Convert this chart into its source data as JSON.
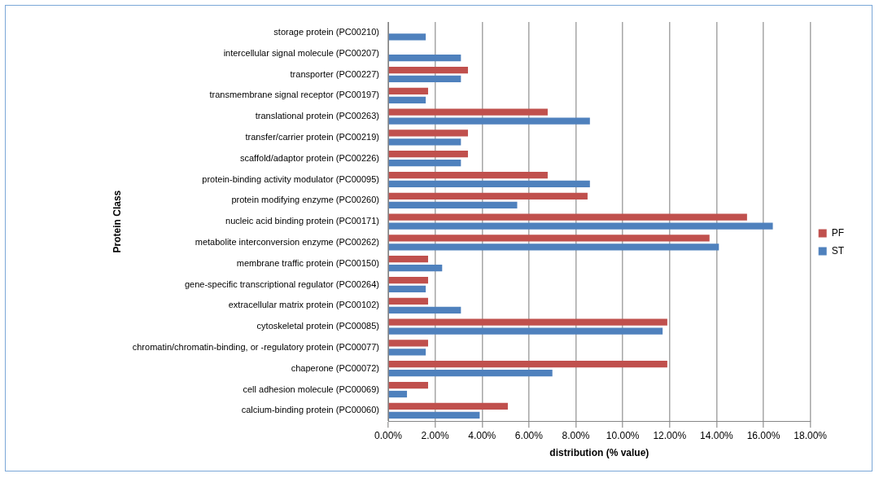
{
  "chart_data": {
    "type": "bar",
    "orientation": "horizontal",
    "xlabel": "distribution (% value)",
    "ylabel": "Protein Class",
    "categories": [
      "storage protein (PC00210)",
      "intercellular signal molecule (PC00207)",
      "transporter (PC00227)",
      "transmembrane signal receptor (PC00197)",
      "translational protein (PC00263)",
      "transfer/carrier protein (PC00219)",
      "scaffold/adaptor protein (PC00226)",
      "protein-binding activity modulator (PC00095)",
      "protein modifying enzyme (PC00260)",
      "nucleic acid binding protein (PC00171)",
      "metabolite interconversion enzyme (PC00262)",
      "membrane traffic protein (PC00150)",
      "gene-specific transcriptional regulator (PC00264)",
      "extracellular matrix protein (PC00102)",
      "cytoskeletal protein (PC00085)",
      "chromatin/chromatin-binding, or -regulatory protein (PC00077)",
      "chaperone (PC00072)",
      "cell adhesion molecule (PC00069)",
      "calcium-binding protein (PC00060)"
    ],
    "series": [
      {
        "name": "PF",
        "color": "#c0504d",
        "values": [
          null,
          null,
          3.4,
          1.7,
          6.8,
          3.4,
          3.4,
          6.8,
          8.5,
          15.3,
          13.7,
          1.7,
          1.7,
          1.7,
          11.9,
          1.7,
          11.9,
          1.7,
          5.1
        ]
      },
      {
        "name": "ST",
        "color": "#4f81bd",
        "values": [
          1.6,
          3.1,
          3.1,
          1.6,
          8.6,
          3.1,
          3.1,
          8.6,
          5.5,
          16.4,
          14.1,
          2.3,
          1.6,
          3.1,
          11.7,
          1.6,
          7.0,
          0.8,
          3.9
        ]
      }
    ],
    "xlim": [
      0,
      18
    ],
    "xticks": [
      {
        "value": 0,
        "label": "0.00%"
      },
      {
        "value": 2,
        "label": "2.00%"
      },
      {
        "value": 4,
        "label": "4.00%"
      },
      {
        "value": 6,
        "label": "6.00%"
      },
      {
        "value": 8,
        "label": "8.00%"
      },
      {
        "value": 10,
        "label": "10.00%"
      },
      {
        "value": 12,
        "label": "12.00%"
      },
      {
        "value": 14,
        "label": "14.00%"
      },
      {
        "value": 16,
        "label": "16.00%"
      },
      {
        "value": 18,
        "label": "18.00%"
      }
    ],
    "grid": "x",
    "legend": "right"
  }
}
